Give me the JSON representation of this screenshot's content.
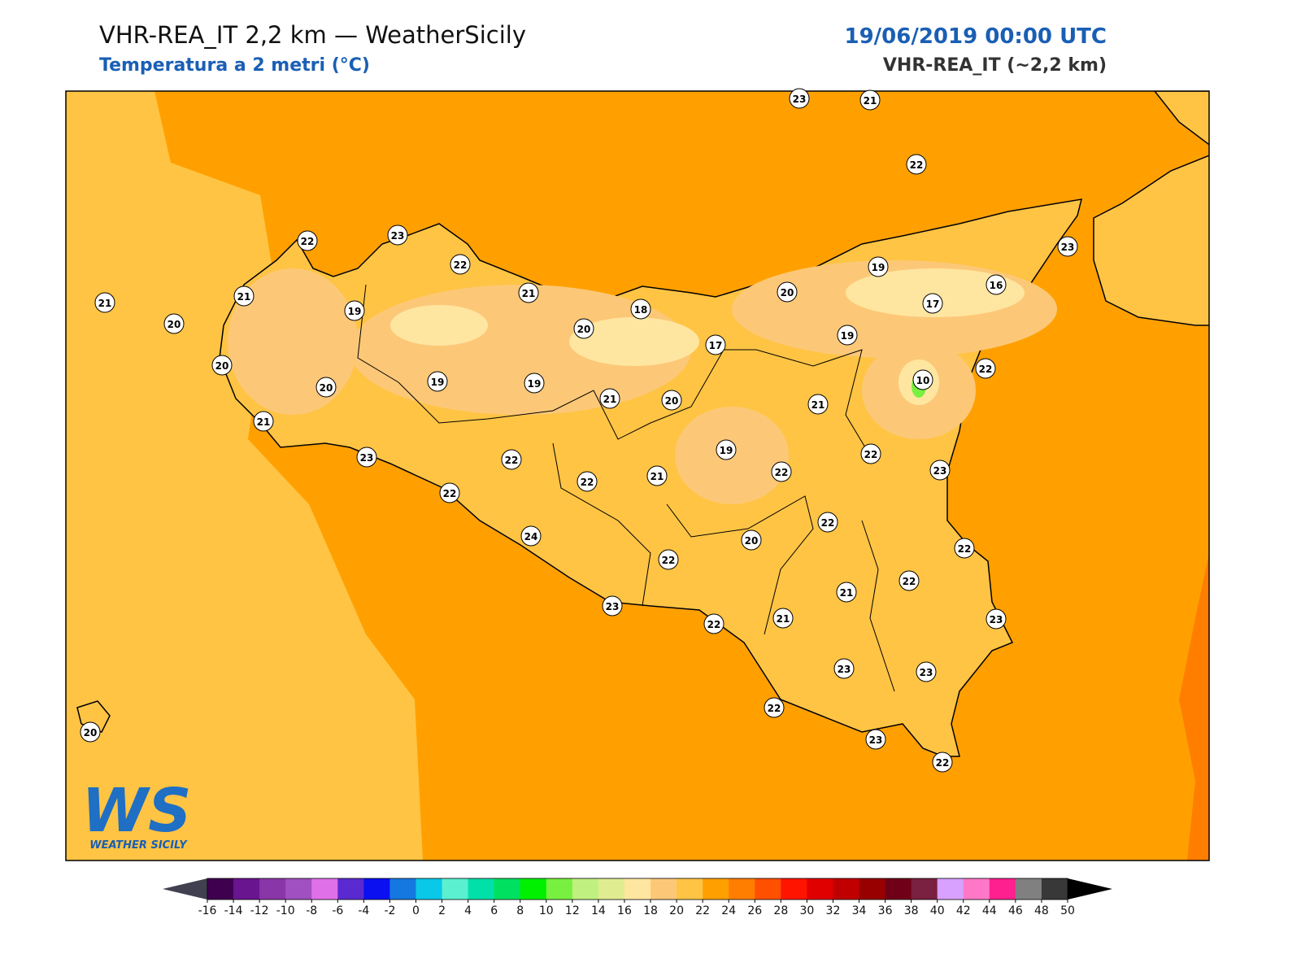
{
  "header": {
    "title": "VHR-REA_IT 2,2 km — WeatherSicily",
    "subtitle": "Temperatura a 2 metri (°C)",
    "datetime": "19/06/2019 00:00 UTC",
    "model": "VHR-REA_IT (~2,2 km)"
  },
  "stations": [
    23,
    21,
    22,
    22,
    23,
    22,
    21,
    21,
    20,
    19,
    21,
    18,
    20,
    20,
    19,
    16,
    17,
    23,
    20,
    20,
    19,
    19,
    17,
    19,
    10,
    22,
    21,
    21,
    20,
    21,
    23,
    22,
    22,
    19,
    22,
    21,
    22,
    22,
    23,
    22,
    24,
    20,
    22,
    22,
    21,
    22,
    23,
    22,
    21,
    23,
    23,
    23,
    22,
    23,
    22,
    20
  ],
  "colorbar": {
    "ticks": [
      -16,
      -14,
      -12,
      -10,
      -8,
      -6,
      -4,
      -2,
      0,
      2,
      4,
      6,
      8,
      10,
      12,
      14,
      16,
      18,
      20,
      22,
      24,
      26,
      28,
      30,
      32,
      34,
      36,
      38,
      40,
      42,
      44,
      46,
      48,
      50
    ],
    "colors": [
      "#3f0050",
      "#6a1590",
      "#8a35a8",
      "#a050c0",
      "#e070e8",
      "#5a2ad0",
      "#0a10f0",
      "#1478e0",
      "#0ac8e8",
      "#5af0d0",
      "#00e0a8",
      "#00e060",
      "#00f000",
      "#78f040",
      "#c0f080",
      "#e0ec90",
      "#ffe6a0",
      "#fcc878",
      "#ffc444",
      "#ffa000",
      "#ff7e00",
      "#ff5000",
      "#ff1400",
      "#e00000",
      "#c00000",
      "#980000",
      "#700018",
      "#7a2040",
      "#d8a0ff",
      "#ff78c8",
      "#ff2090",
      "#808080",
      "#383838"
    ],
    "under_color": "#404050",
    "over_color": "#000000"
  },
  "logo": {
    "mark": "WS",
    "name": "WEATHER SICILY"
  }
}
